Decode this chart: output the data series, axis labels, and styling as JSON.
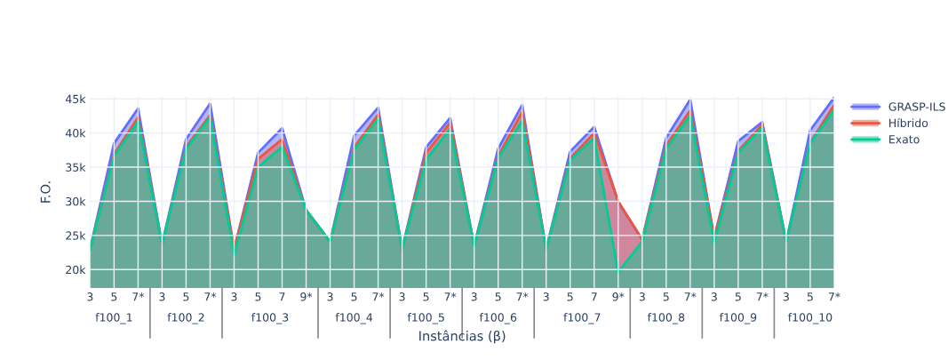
{
  "chart_data": {
    "type": "area",
    "xlabel": "Instâncias (β)",
    "ylabel": "F.O.",
    "categories": [
      "3",
      "5",
      "7*",
      "3",
      "5",
      "7*",
      "3",
      "5",
      "7",
      "9*",
      "3",
      "5",
      "7*",
      "3",
      "5",
      "7*",
      "3",
      "5",
      "7*",
      "3",
      "5",
      "7",
      "9*",
      "3",
      "5",
      "7*",
      "3",
      "5",
      "7*",
      "3",
      "5",
      "7*"
    ],
    "annotations": [
      "f100_1",
      "f100_2",
      "f100_3",
      "f100_4",
      "f100_5",
      "f100_6",
      "f100_7",
      "f100_8",
      "f100_9",
      "f100_10"
    ],
    "series": [
      {
        "name": "GRASP-ILS",
        "color": "#636efa",
        "values": [
          23000,
          38500,
          43600,
          23700,
          39100,
          44300,
          23000,
          37100,
          40700,
          28700,
          24100,
          39600,
          43700,
          23000,
          37900,
          42200,
          23500,
          37700,
          44100,
          23000,
          37300,
          40900,
          29900,
          24400,
          39300,
          44900,
          24700,
          38800,
          41600,
          24100,
          40400,
          45200
        ]
      },
      {
        "name": "Híbrido",
        "color": "#ef553b",
        "values": [
          23000,
          36900,
          42300,
          23700,
          38000,
          42600,
          23000,
          36200,
          39100,
          28700,
          24100,
          37900,
          42700,
          23000,
          37100,
          41500,
          23500,
          36600,
          43100,
          23000,
          36300,
          40000,
          30000,
          24400,
          38200,
          43300,
          24700,
          37400,
          41200,
          24100,
          38600,
          44100
        ]
      },
      {
        "name": "Exato",
        "color": "#00cc96",
        "values": [
          23000,
          36600,
          41700,
          23700,
          37700,
          42300,
          22200,
          35000,
          38000,
          28700,
          24100,
          37500,
          42100,
          23000,
          36100,
          40600,
          23500,
          36300,
          41800,
          23000,
          36000,
          39300,
          19600,
          24100,
          37700,
          42600,
          23900,
          37100,
          40800,
          24100,
          38500,
          43400
        ]
      }
    ],
    "ylim": [
      17300,
      45400
    ],
    "yticks": [
      {
        "value": 20000,
        "label": "20k"
      },
      {
        "value": 25000,
        "label": "25k"
      },
      {
        "value": 30000,
        "label": "30k"
      },
      {
        "value": 35000,
        "label": "35k"
      },
      {
        "value": 40000,
        "label": "40k"
      },
      {
        "value": 45000,
        "label": "45k"
      }
    ],
    "grid": true,
    "legend": "top right"
  }
}
